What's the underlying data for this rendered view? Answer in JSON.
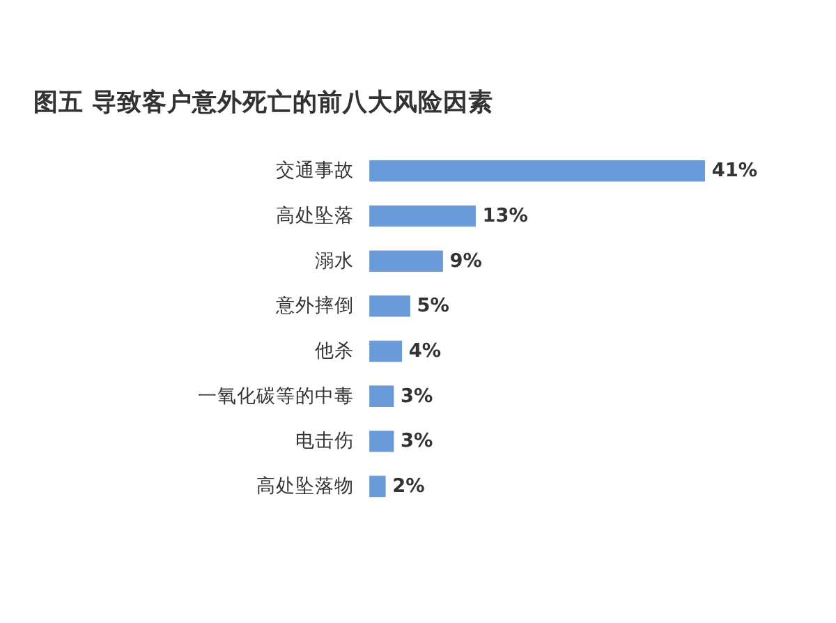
{
  "chart_data": {
    "type": "bar",
    "orientation": "horizontal",
    "title": "图五  导致客户意外死亡的前八大风险因素",
    "categories": [
      "交通事故",
      "高处坠落",
      "溺水",
      "意外摔倒",
      "他杀",
      "一氧化碳等的中毒",
      "电击伤",
      "高处坠落物"
    ],
    "values": [
      41,
      13,
      9,
      5,
      4,
      3,
      3,
      2
    ],
    "value_labels": [
      "41%",
      "13%",
      "9%",
      "5%",
      "4%",
      "3%",
      "3%",
      "2%"
    ],
    "color": "#6a9bd8",
    "tick_labels": "y"
  }
}
